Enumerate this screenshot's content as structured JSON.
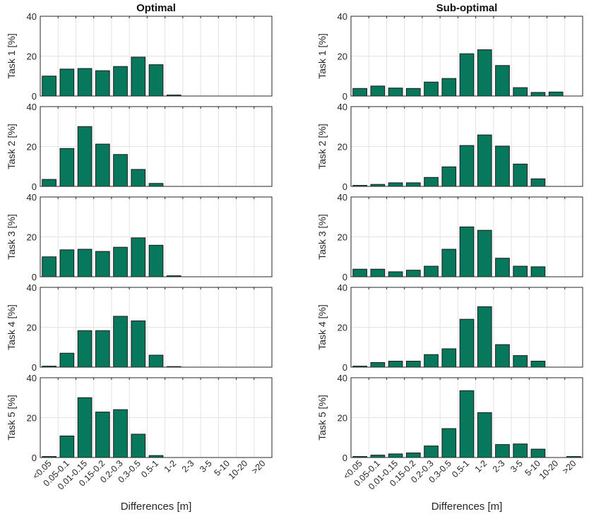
{
  "figure": {
    "xlabel": "Differences [m]",
    "bar_color": "#08785c",
    "grid_color": "#e3e3e3",
    "axis_color": "#262626"
  },
  "chart_data": [
    {
      "type": "bar",
      "title": "Optimal",
      "xlabel": "Differences [m]",
      "categories": [
        "<0.05",
        "0.05-0.1",
        "0.01-0.15",
        "0.15-0.2",
        "0.2-0.3",
        "0.3-0.5",
        "0.5-1",
        "1-2",
        "2-3",
        "3-5",
        "5-10",
        "10-20",
        ">20"
      ],
      "ylim": [
        0,
        40
      ],
      "yticks": [
        0,
        20,
        40
      ],
      "grid": true,
      "panels": [
        {
          "ylabel": "Task 1 [%]",
          "values": [
            10,
            13.5,
            13.8,
            12.7,
            14.8,
            19.5,
            15.7,
            0.5,
            0,
            0,
            0,
            0,
            0
          ]
        },
        {
          "ylabel": "Task 2 [%]",
          "values": [
            3.5,
            19,
            30,
            21.2,
            16,
            8.5,
            1.5,
            0,
            0,
            0,
            0,
            0,
            0
          ]
        },
        {
          "ylabel": "Task 3 [%]",
          "values": [
            10,
            13.5,
            13.8,
            12.7,
            14.8,
            19.5,
            15.8,
            0.5,
            0,
            0,
            0,
            0,
            0
          ]
        },
        {
          "ylabel": "Task 4 [%]",
          "values": [
            0.5,
            7,
            18.3,
            18.3,
            25.5,
            23.2,
            6,
            0.3,
            0,
            0,
            0,
            0,
            0
          ]
        },
        {
          "ylabel": "Task 5 [%]",
          "values": [
            0.5,
            10.8,
            30,
            22.8,
            24,
            11.7,
            1,
            0,
            0,
            0,
            0,
            0,
            0
          ]
        }
      ]
    },
    {
      "type": "bar",
      "title": "Sub-optimal",
      "xlabel": "Differences [m]",
      "categories": [
        "<0.05",
        "0.05-0.1",
        "0.01-0.15",
        "0.15-0.2",
        "0.2-0.3",
        "0.3-0.5",
        "0.5-1",
        "1-2",
        "2-3",
        "3-5",
        "5-10",
        "10-20",
        ">20"
      ],
      "ylim": [
        0,
        40
      ],
      "yticks": [
        0,
        20,
        40
      ],
      "grid": true,
      "panels": [
        {
          "ylabel": "Task 1 [%]",
          "values": [
            3.8,
            5,
            4,
            3.8,
            7,
            8.8,
            21.2,
            23.2,
            15.3,
            4.2,
            1.8,
            2,
            0
          ]
        },
        {
          "ylabel": "Task 2 [%]",
          "values": [
            0.5,
            1,
            1.8,
            1.8,
            4.5,
            9.8,
            20.5,
            25.8,
            20.2,
            11.2,
            3.8,
            0,
            0
          ]
        },
        {
          "ylabel": "Task 3 [%]",
          "values": [
            3.8,
            3.8,
            2.5,
            3.3,
            5.3,
            13.8,
            25,
            23.3,
            9.3,
            5.3,
            5,
            0,
            0
          ]
        },
        {
          "ylabel": "Task 4 [%]",
          "values": [
            0.5,
            2.3,
            3,
            3,
            6.3,
            9.2,
            24,
            30.3,
            11.3,
            5.8,
            3,
            0,
            0
          ]
        },
        {
          "ylabel": "Task 5 [%]",
          "values": [
            0.5,
            1.2,
            1.8,
            2.3,
            5.8,
            14.5,
            33.5,
            22.5,
            6.5,
            6.8,
            4.2,
            0,
            0.5
          ]
        }
      ]
    }
  ]
}
